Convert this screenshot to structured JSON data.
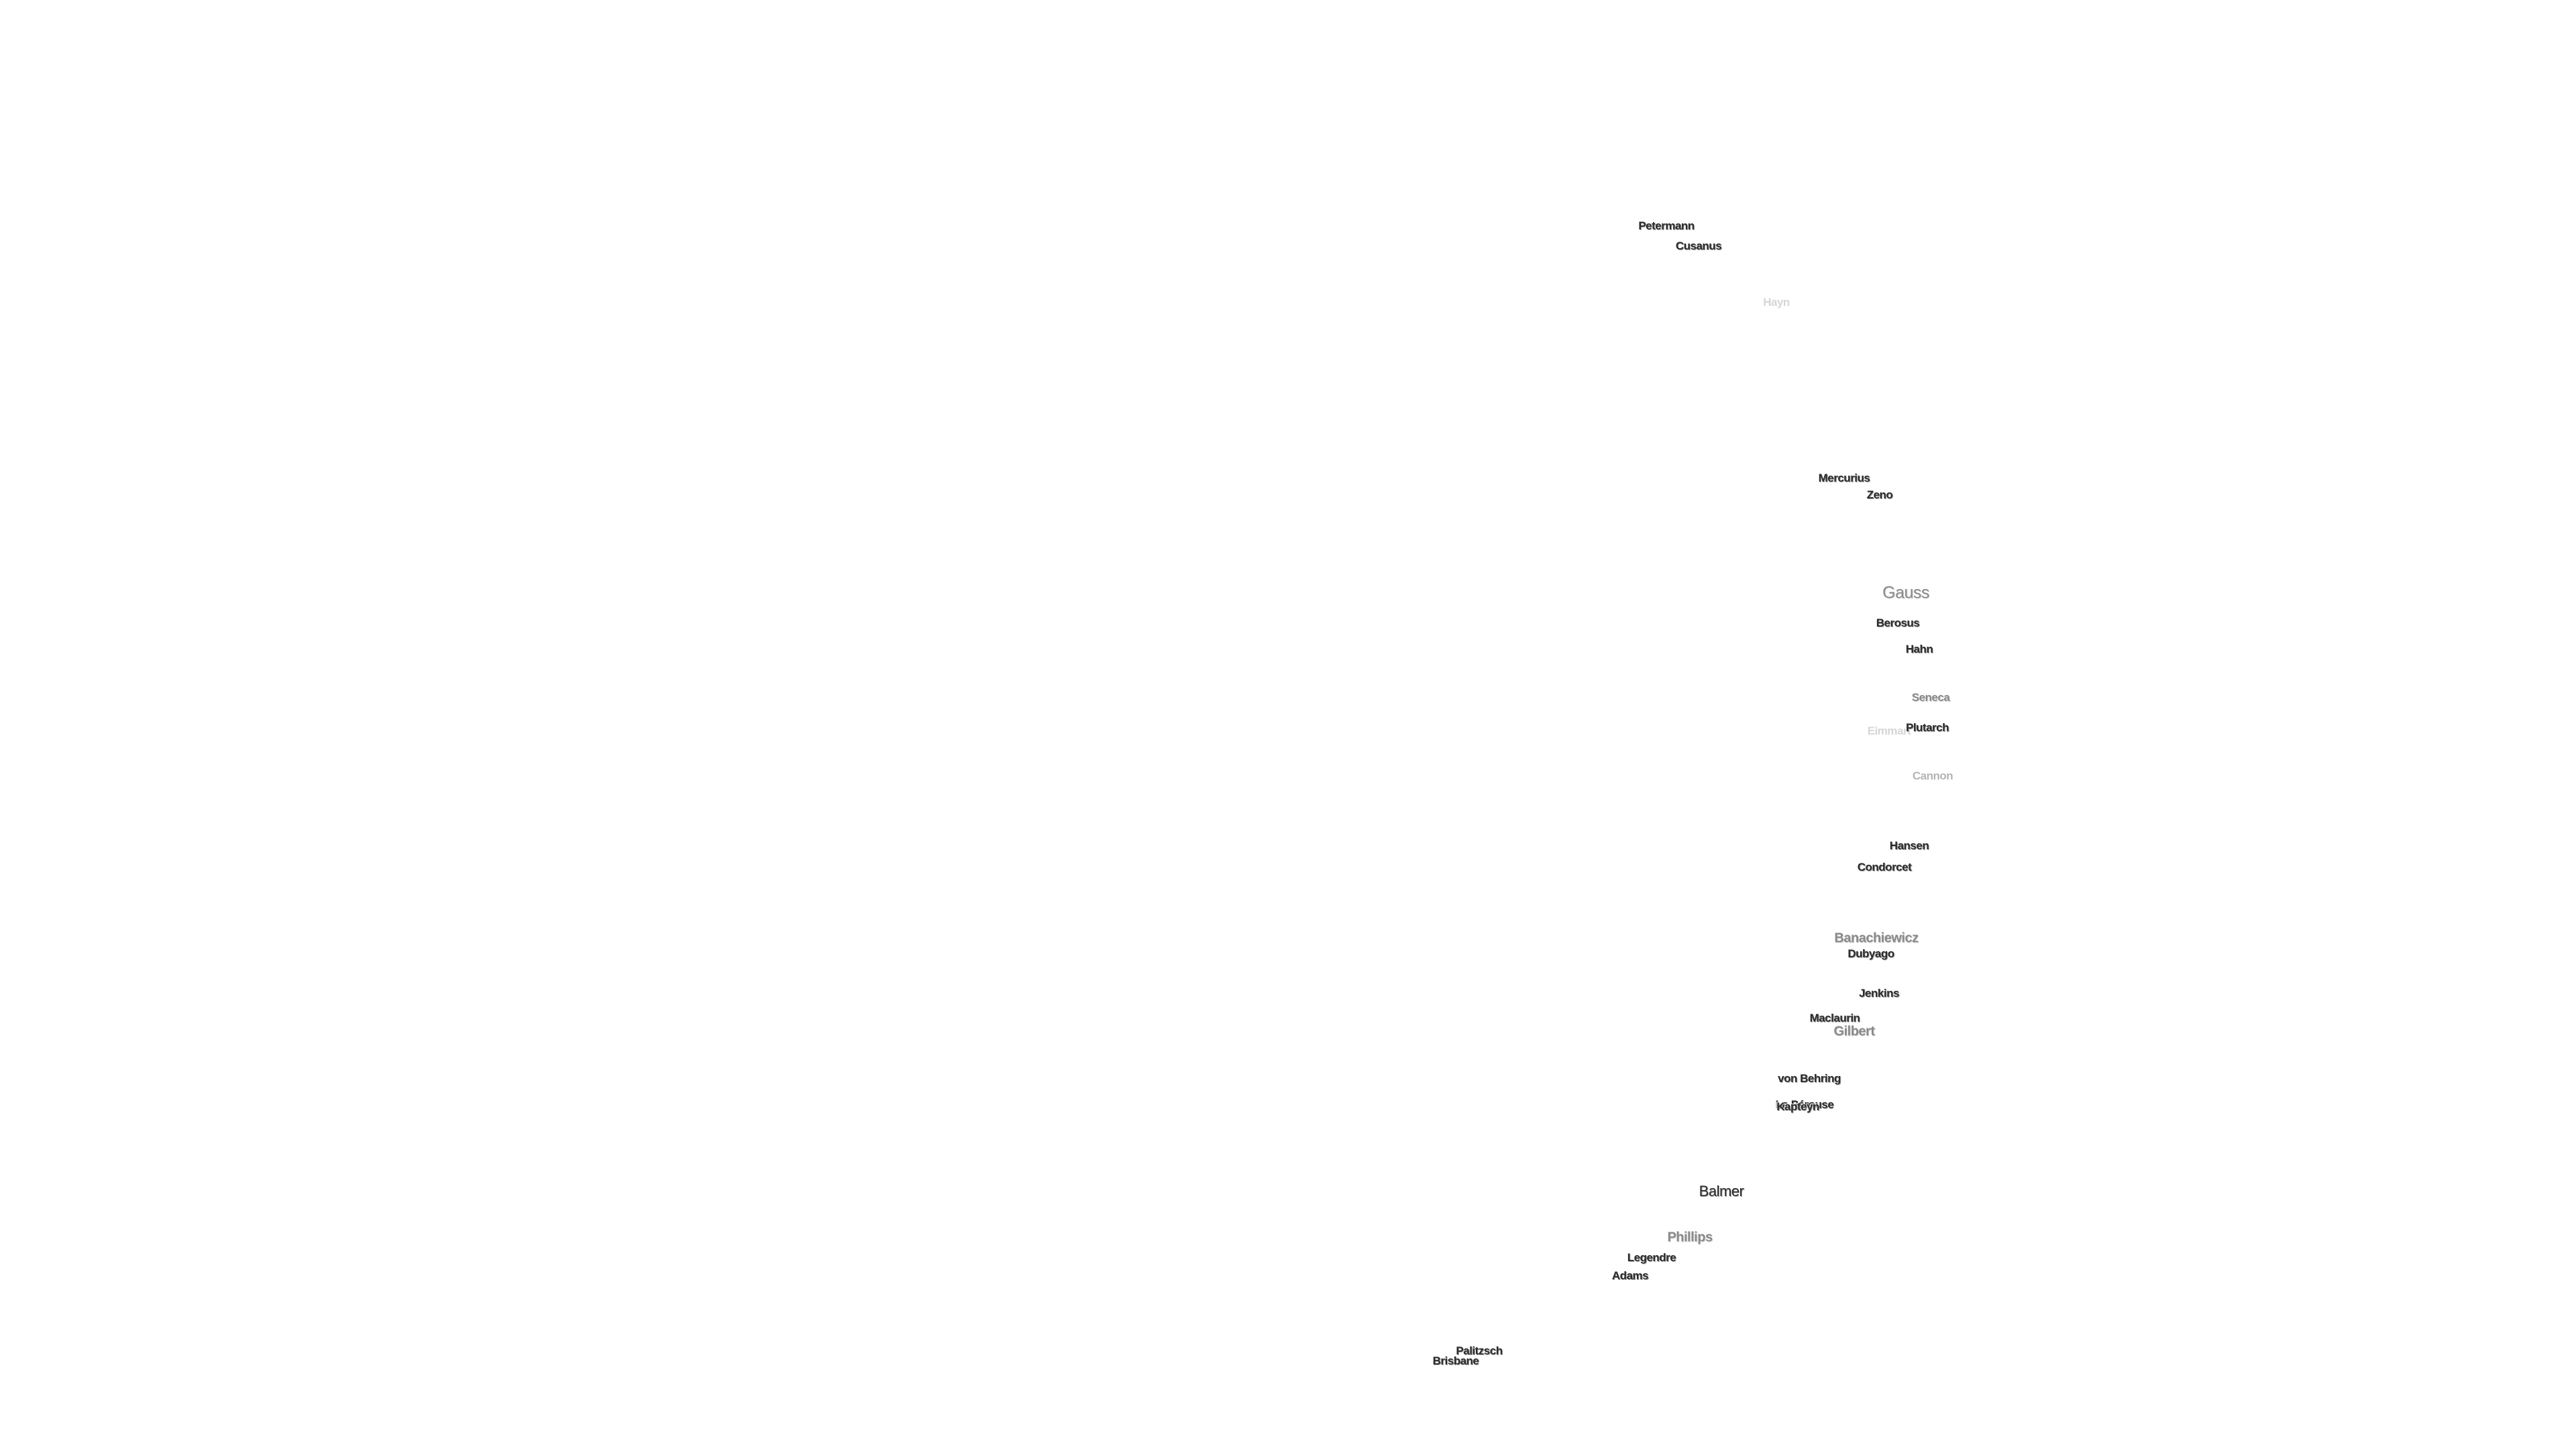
{
  "labels": [
    "Petermann",
    "Cusanus",
    "Hayn",
    "Mercurius",
    "Zeno",
    "Gauss",
    "Berosus",
    "Hahn",
    "Seneca",
    "Plutarch",
    "Eimmart",
    "Cannon",
    "Hansen",
    "Condorcet",
    "Banachiewicz",
    "Dubyago",
    "Jenkins",
    "Maclaurin",
    "Gilbert",
    "von Behring",
    "La Pérouse",
    "Kapteyn",
    "Balmer",
    "Phillips",
    "Legendre",
    "Adams",
    "Palitzsch",
    "Brisbane"
  ]
}
